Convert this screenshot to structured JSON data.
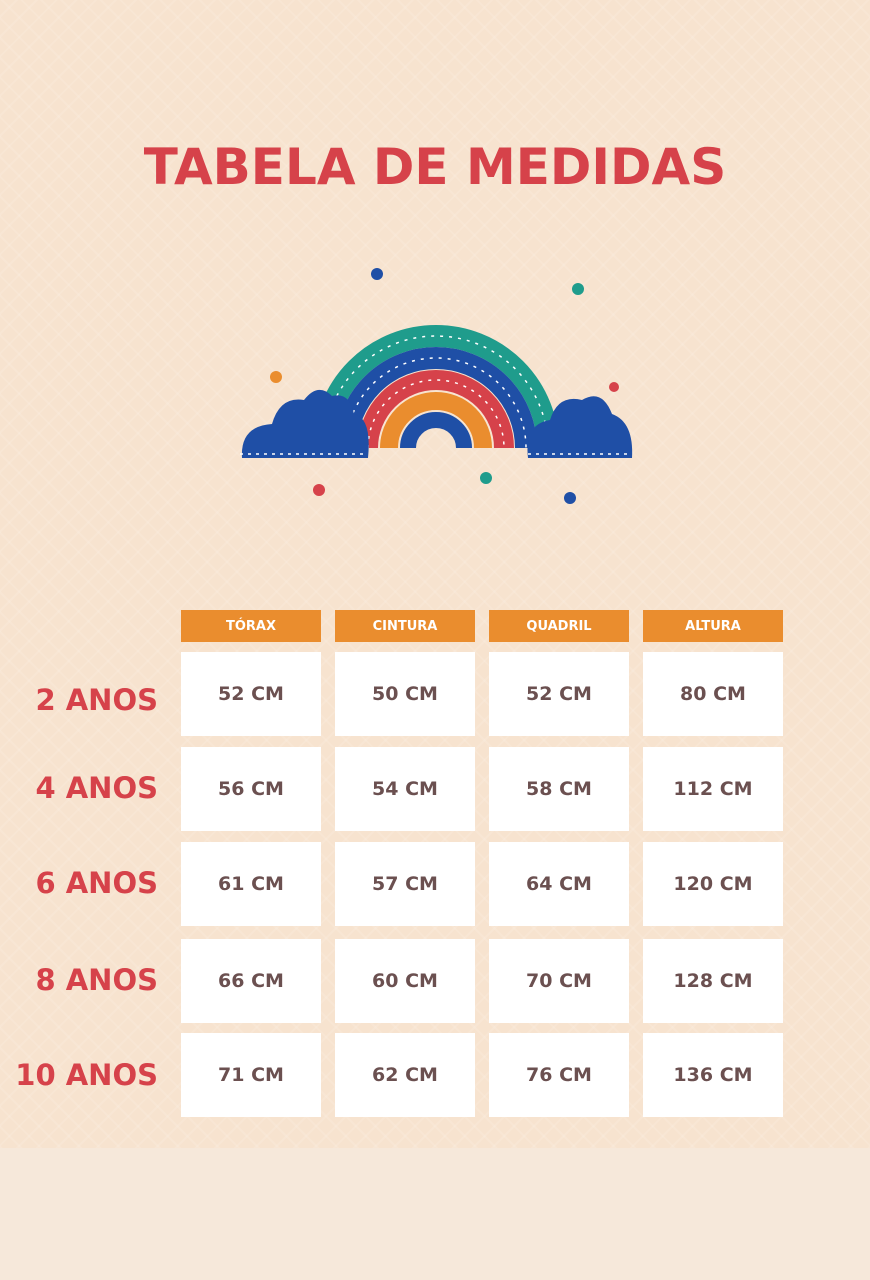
{
  "title": "TABELA DE MEDIDAS",
  "colors": {
    "title": "#d6424a",
    "header_bg": "#ea8d2e",
    "background": "#f7e3cf",
    "cell_text": "#6b5050",
    "rainbow": [
      "#1f9c8c",
      "#1f4fa6",
      "#d6424a",
      "#ea8d2e",
      "#1f4fa6"
    ]
  },
  "decoration": "rainbow-with-clouds-icon",
  "table": {
    "headers": [
      "TÓRAX",
      "CINTURA",
      "QUADRIL",
      "ALTURA"
    ],
    "rows": [
      {
        "age": "2 ANOS",
        "values": [
          "52 CM",
          "50 CM",
          "52 CM",
          "80 CM"
        ]
      },
      {
        "age": "4 ANOS",
        "values": [
          "56 CM",
          "54 CM",
          "58 CM",
          "112 CM"
        ]
      },
      {
        "age": "6 ANOS",
        "values": [
          "61 CM",
          "57 CM",
          "64 CM",
          "120 CM"
        ]
      },
      {
        "age": "8 ANOS",
        "values": [
          "66 CM",
          "60 CM",
          "70 CM",
          "128 CM"
        ]
      },
      {
        "age": "10 ANOS",
        "values": [
          "71 CM",
          "62 CM",
          "76 CM",
          "136 CM"
        ]
      }
    ]
  }
}
